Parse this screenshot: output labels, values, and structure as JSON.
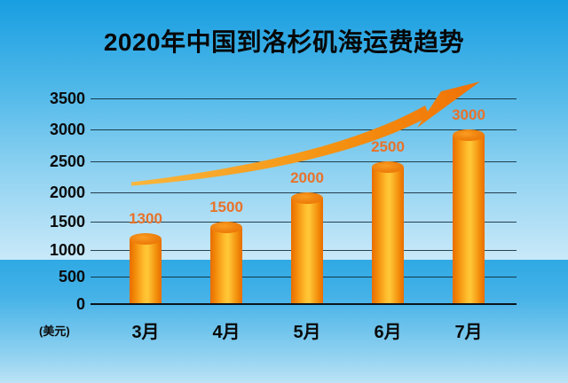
{
  "title": "2020年中国到洛杉矶海运费趋势",
  "chart_data": {
    "type": "bar",
    "title": "2020年中国到洛杉矶海运费趋势",
    "categories": [
      "3月",
      "4月",
      "5月",
      "6月",
      "7月"
    ],
    "values": [
      1300,
      1500,
      2000,
      2500,
      3000
    ],
    "value_labels": [
      "1300",
      "1500",
      "2000",
      "2500",
      "3000"
    ],
    "xlabel": "",
    "ylabel": "(美元)",
    "ylim": [
      0,
      3500
    ],
    "yticks": [
      3500,
      3000,
      2500,
      2000,
      1500,
      1000,
      500,
      0
    ],
    "grid": true,
    "legend": "none",
    "bar_style": "3d-cylinder",
    "annotations": [
      "rising-trend-arrow"
    ]
  },
  "colors": {
    "sky_top": "#189EE1",
    "sky_bottom": "#C9E9F9",
    "sea_top": "#2FA9E4",
    "sea_bottom": "#BCE3F5",
    "bar_edge": "#E86D00",
    "bar_center": "#FFC838",
    "bar_cap": "#E96E00",
    "value_label": "#E8722A",
    "arrow_tail": "#F9B63C",
    "arrow_head": "#F07206",
    "gridline": "#0a141c",
    "text": "#070707"
  }
}
